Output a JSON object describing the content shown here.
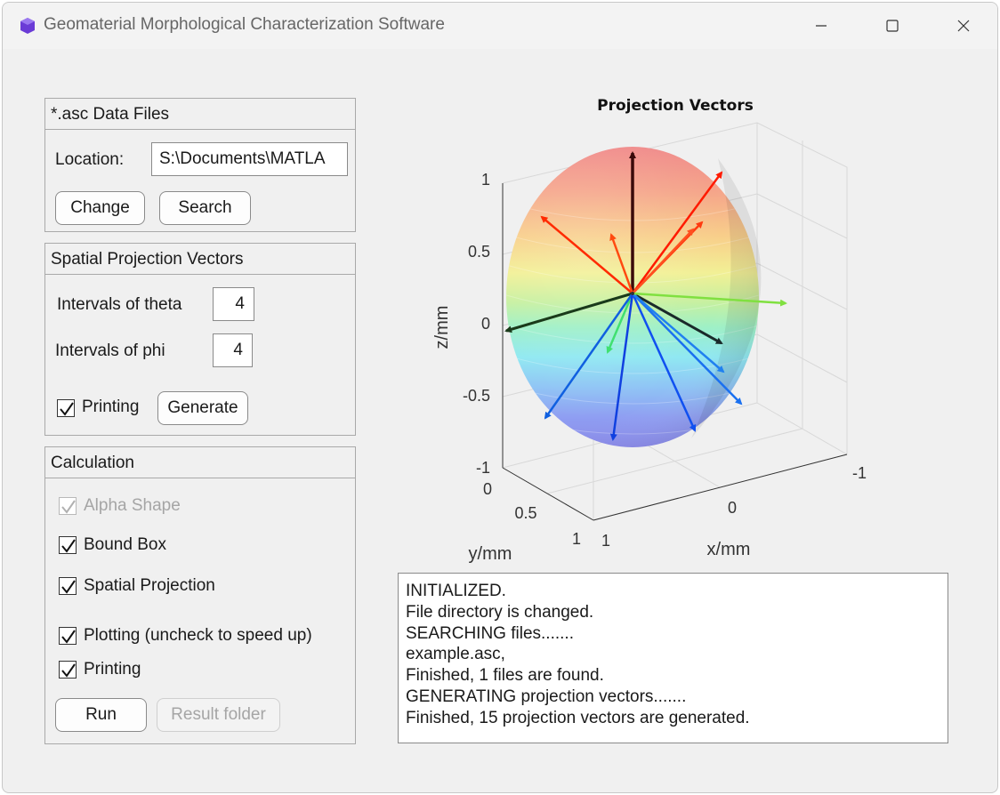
{
  "window": {
    "title": "Geomaterial Morphological Characterization Software"
  },
  "data_files": {
    "title": "*.asc Data Files",
    "location_label": "Location:",
    "location_value": "S:\\Documents\\MATLA",
    "change_label": "Change",
    "search_label": "Search"
  },
  "projection": {
    "title": "Spatial Projection Vectors",
    "theta_label": "Intervals of theta",
    "theta_value": "4",
    "phi_label": "Intervals of phi",
    "phi_value": "4",
    "printing_label": "Printing",
    "printing_checked": true,
    "generate_label": "Generate"
  },
  "calculation": {
    "title": "Calculation",
    "alpha_label": "Alpha Shape",
    "bound_label": "Bound Box",
    "spatial_label": "Spatial Projection",
    "plotting_label": "Plotting (uncheck to speed up)",
    "printing_label": "Printing",
    "run_label": "Run",
    "result_label": "Result folder"
  },
  "plot": {
    "title": "Projection Vectors",
    "z_label": "z/mm",
    "x_label": "x/mm",
    "y_label": "y/mm",
    "z_ticks": [
      "1",
      "0.5",
      "0",
      "-0.5",
      "-1"
    ],
    "x_ticks": [
      "-1",
      "0",
      "1"
    ],
    "y_ticks": [
      "0",
      "0.5",
      "1"
    ]
  },
  "log": {
    "lines": [
      "INITIALIZED.",
      "File directory is changed.",
      "SEARCHING files.......",
      "example.asc,",
      "Finished, 1 files are found.",
      "GENERATING projection vectors.......",
      "Finished, 15 projection vectors are generated."
    ]
  },
  "colors": {
    "window_bg": "#f0f0f0",
    "accent_icon": "#6a3bd6"
  }
}
